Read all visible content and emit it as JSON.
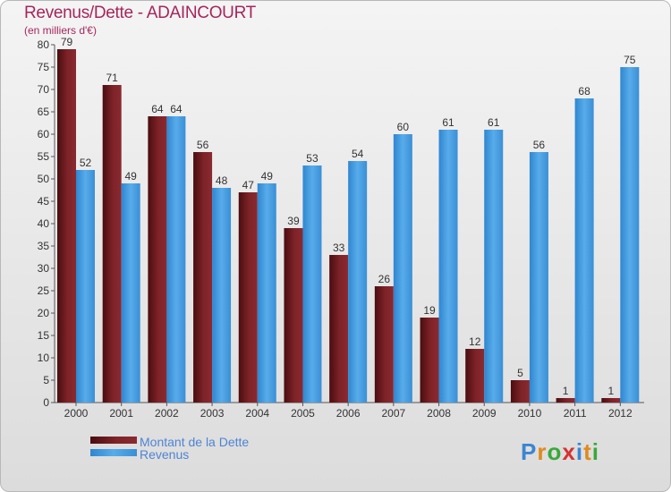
{
  "title": "Revenus/Dette - ADAINCOURT",
  "subtitle": "(en milliers d'€)",
  "logo_text": "Proxiti",
  "colors": {
    "dette": "#7a1c21",
    "revenus": "#4ea4e6",
    "title": "#a5265c"
  },
  "chart_data": {
    "type": "bar",
    "title": "Revenus/Dette - ADAINCOURT",
    "ylabel": "(en milliers d'€)",
    "xlabel": "",
    "ylim": [
      0,
      80
    ],
    "yticks": [
      0,
      5,
      10,
      15,
      20,
      25,
      30,
      35,
      40,
      45,
      50,
      55,
      60,
      65,
      70,
      75,
      80
    ],
    "grid": false,
    "legend_position": "bottom-left",
    "categories": [
      "2000",
      "2001",
      "2002",
      "2003",
      "2004",
      "2005",
      "2006",
      "2007",
      "2008",
      "2009",
      "2010",
      "2011",
      "2012"
    ],
    "series": [
      {
        "name": "Montant de la Dette",
        "values": [
          79,
          71,
          64,
          56,
          47,
          39,
          33,
          26,
          19,
          12,
          5,
          1,
          1
        ]
      },
      {
        "name": "Revenus",
        "values": [
          52,
          49,
          64,
          48,
          49,
          53,
          54,
          60,
          61,
          61,
          56,
          68,
          75
        ]
      }
    ]
  }
}
